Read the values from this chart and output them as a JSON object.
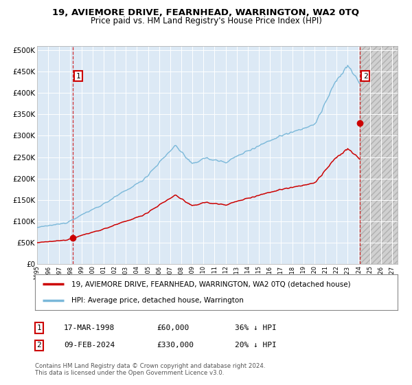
{
  "title": "19, AVIEMORE DRIVE, FEARNHEAD, WARRINGTON, WA2 0TQ",
  "subtitle": "Price paid vs. HM Land Registry's House Price Index (HPI)",
  "bg_color": "#dce9f5",
  "grid_color": "#ffffff",
  "red_line_color": "#cc0000",
  "blue_line_color": "#7ab8d9",
  "purchase1_date_num": 1998.21,
  "purchase1_price": 60000,
  "purchase2_date_num": 2024.1,
  "purchase2_price": 330000,
  "xmin": 1995.0,
  "xmax": 2027.5,
  "ymin": 0,
  "ymax": 510000,
  "yticks": [
    0,
    50000,
    100000,
    150000,
    200000,
    250000,
    300000,
    350000,
    400000,
    450000,
    500000
  ],
  "ytick_labels": [
    "£0",
    "£50K",
    "£100K",
    "£150K",
    "£200K",
    "£250K",
    "£300K",
    "£350K",
    "£400K",
    "£450K",
    "£500K"
  ],
  "xticks": [
    1995,
    1996,
    1997,
    1998,
    1999,
    2000,
    2001,
    2002,
    2003,
    2004,
    2005,
    2006,
    2007,
    2008,
    2009,
    2010,
    2011,
    2012,
    2013,
    2014,
    2015,
    2016,
    2017,
    2018,
    2019,
    2020,
    2021,
    2022,
    2023,
    2024,
    2025,
    2026,
    2027
  ],
  "legend1_label": "19, AVIEMORE DRIVE, FEARNHEAD, WARRINGTON, WA2 0TQ (detached house)",
  "legend2_label": "HPI: Average price, detached house, Warrington",
  "note1_label": "1",
  "note1_date": "17-MAR-1998",
  "note1_price": "£60,000",
  "note1_hpi": "36% ↓ HPI",
  "note2_label": "2",
  "note2_date": "09-FEB-2024",
  "note2_price": "£330,000",
  "note2_hpi": "20% ↓ HPI",
  "copyright": "Contains HM Land Registry data © Crown copyright and database right 2024.\nThis data is licensed under the Open Government Licence v3.0."
}
